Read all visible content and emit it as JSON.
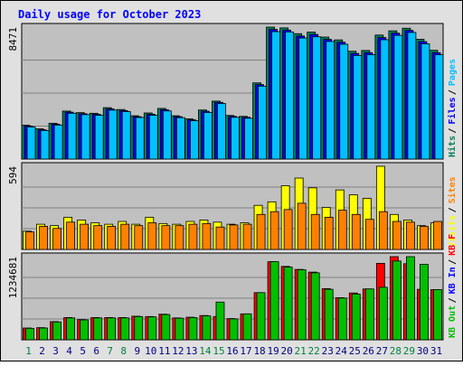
{
  "chart_data": {
    "type": "bar",
    "title": "Daily usage for October 2023",
    "categories": [
      "1",
      "2",
      "3",
      "4",
      "5",
      "6",
      "7",
      "8",
      "9",
      "10",
      "11",
      "12",
      "13",
      "14",
      "15",
      "16",
      "17",
      "18",
      "19",
      "20",
      "21",
      "22",
      "23",
      "24",
      "25",
      "26",
      "27",
      "28",
      "29",
      "30",
      "31"
    ],
    "weekend_days": [
      "1",
      "7",
      "8",
      "14",
      "15",
      "21",
      "22",
      "28",
      "29"
    ],
    "grid": true,
    "colors": {
      "background": "#c0c0c0",
      "frame_bg": "#e0e0e0",
      "title": "#0000ff",
      "hits": "#00805c",
      "files": "#0000ff",
      "pages": "#00c0ff",
      "visits": "#ffff00",
      "sites": "#ff8000",
      "kb_in": "#0000ff",
      "kb_out": "#00c000",
      "kb_f": "#ff0000",
      "weekend_label": "#008040",
      "weekday_label": "#000080"
    },
    "panels": [
      {
        "id": "hits-files-pages",
        "y_max_label": "8471",
        "ylim": [
          0,
          8471
        ],
        "legend": [
          {
            "label": "Hits",
            "color": "#00805c"
          },
          {
            "label": "Files",
            "color": "#0000ff"
          },
          {
            "label": "Pages",
            "color": "#00c0ff"
          }
        ],
        "series": [
          {
            "key": "hits",
            "color": "#00805c",
            "values": [
              2170,
              1940,
              2300,
              3080,
              2980,
              2940,
              3300,
              3180,
              2780,
              2960,
              3250,
              2780,
              2580,
              3150,
              3720,
              2800,
              2740,
              4890,
              8471,
              8420,
              8050,
              8150,
              7830,
              7650,
              6920,
              6970,
              7960,
              8230,
              8400,
              7690,
              6980
            ]
          },
          {
            "key": "files",
            "color": "#0000ff",
            "values": [
              2120,
              1880,
              2240,
              3010,
              2910,
              2870,
              3220,
              3110,
              2720,
              2880,
              3170,
              2720,
              2520,
              3070,
              3640,
              2740,
              2680,
              4780,
              8320,
              8280,
              7900,
              8000,
              7680,
              7500,
              6780,
              6830,
              7800,
              8080,
              8260,
              7540,
              6830
            ]
          },
          {
            "key": "pages",
            "color": "#00c0ff",
            "values": [
              2060,
              1830,
              2180,
              2940,
              2850,
              2810,
              3140,
              3050,
              2670,
              2810,
              3090,
              2660,
              2460,
              2990,
              3570,
              2680,
              2620,
              4680,
              8180,
              8160,
              7770,
              7850,
              7550,
              7370,
              6650,
              6700,
              7660,
              7940,
              8130,
              7400,
              6700
            ]
          }
        ]
      },
      {
        "id": "visits-sites",
        "y_max_label": "594",
        "ylim": [
          0,
          594
        ],
        "legend": [
          {
            "label": "Visits",
            "color": "#ffff00"
          },
          {
            "label": "Sites",
            "color": "#ff8000"
          }
        ],
        "series": [
          {
            "key": "visits",
            "color": "#ffff00",
            "values": [
              130,
              180,
              170,
              230,
              210,
              190,
              180,
              200,
              180,
              230,
              185,
              180,
              200,
              210,
              195,
              180,
              190,
              315,
              340,
              455,
              510,
              440,
              300,
              425,
              390,
              365,
              594,
              250,
              210,
              170,
              190
            ]
          },
          {
            "key": "sites",
            "color": "#ff8000",
            "values": [
              125,
              165,
              150,
              195,
              180,
              170,
              165,
              180,
              170,
              190,
              170,
              170,
              180,
              185,
              160,
              175,
              180,
              250,
              270,
              285,
              330,
              250,
              230,
              280,
              250,
              215,
              270,
              200,
              195,
              165,
              200
            ]
          }
        ]
      },
      {
        "id": "kbytes",
        "y_max_label": "1234681",
        "ylim": [
          0,
          1234681
        ],
        "legend": [
          {
            "label": "KB Out",
            "color": "#00c000"
          },
          {
            "label": "KB In",
            "color": "#0000ff"
          },
          {
            "label": "KB F",
            "color": "#ff0000"
          }
        ],
        "series": [
          {
            "key": "kb_f",
            "color": "#ff0000",
            "values": [
              175000,
              180000,
              270000,
              330000,
              300000,
              330000,
              330000,
              330000,
              350000,
              345000,
              380000,
              325000,
              335000,
              360000,
              345000,
              315000,
              385000,
              700000,
              1160000,
              1090000,
              1045000,
              1005000,
              760000,
              625000,
              695000,
              755000,
              1135000,
              1234681,
              1130000,
              750000,
              745000
            ]
          },
          {
            "key": "kb_out",
            "color": "#00c000",
            "values": [
              170000,
              175000,
              265000,
              325000,
              295000,
              325000,
              325000,
              325000,
              345000,
              340000,
              375000,
              320000,
              330000,
              355000,
              560000,
              310000,
              385000,
              700000,
              1160000,
              1080000,
              1040000,
              995000,
              750000,
              620000,
              680000,
              755000,
              780000,
              1170000,
              1234681,
              1120000,
              745000
            ]
          }
        ]
      }
    ]
  }
}
